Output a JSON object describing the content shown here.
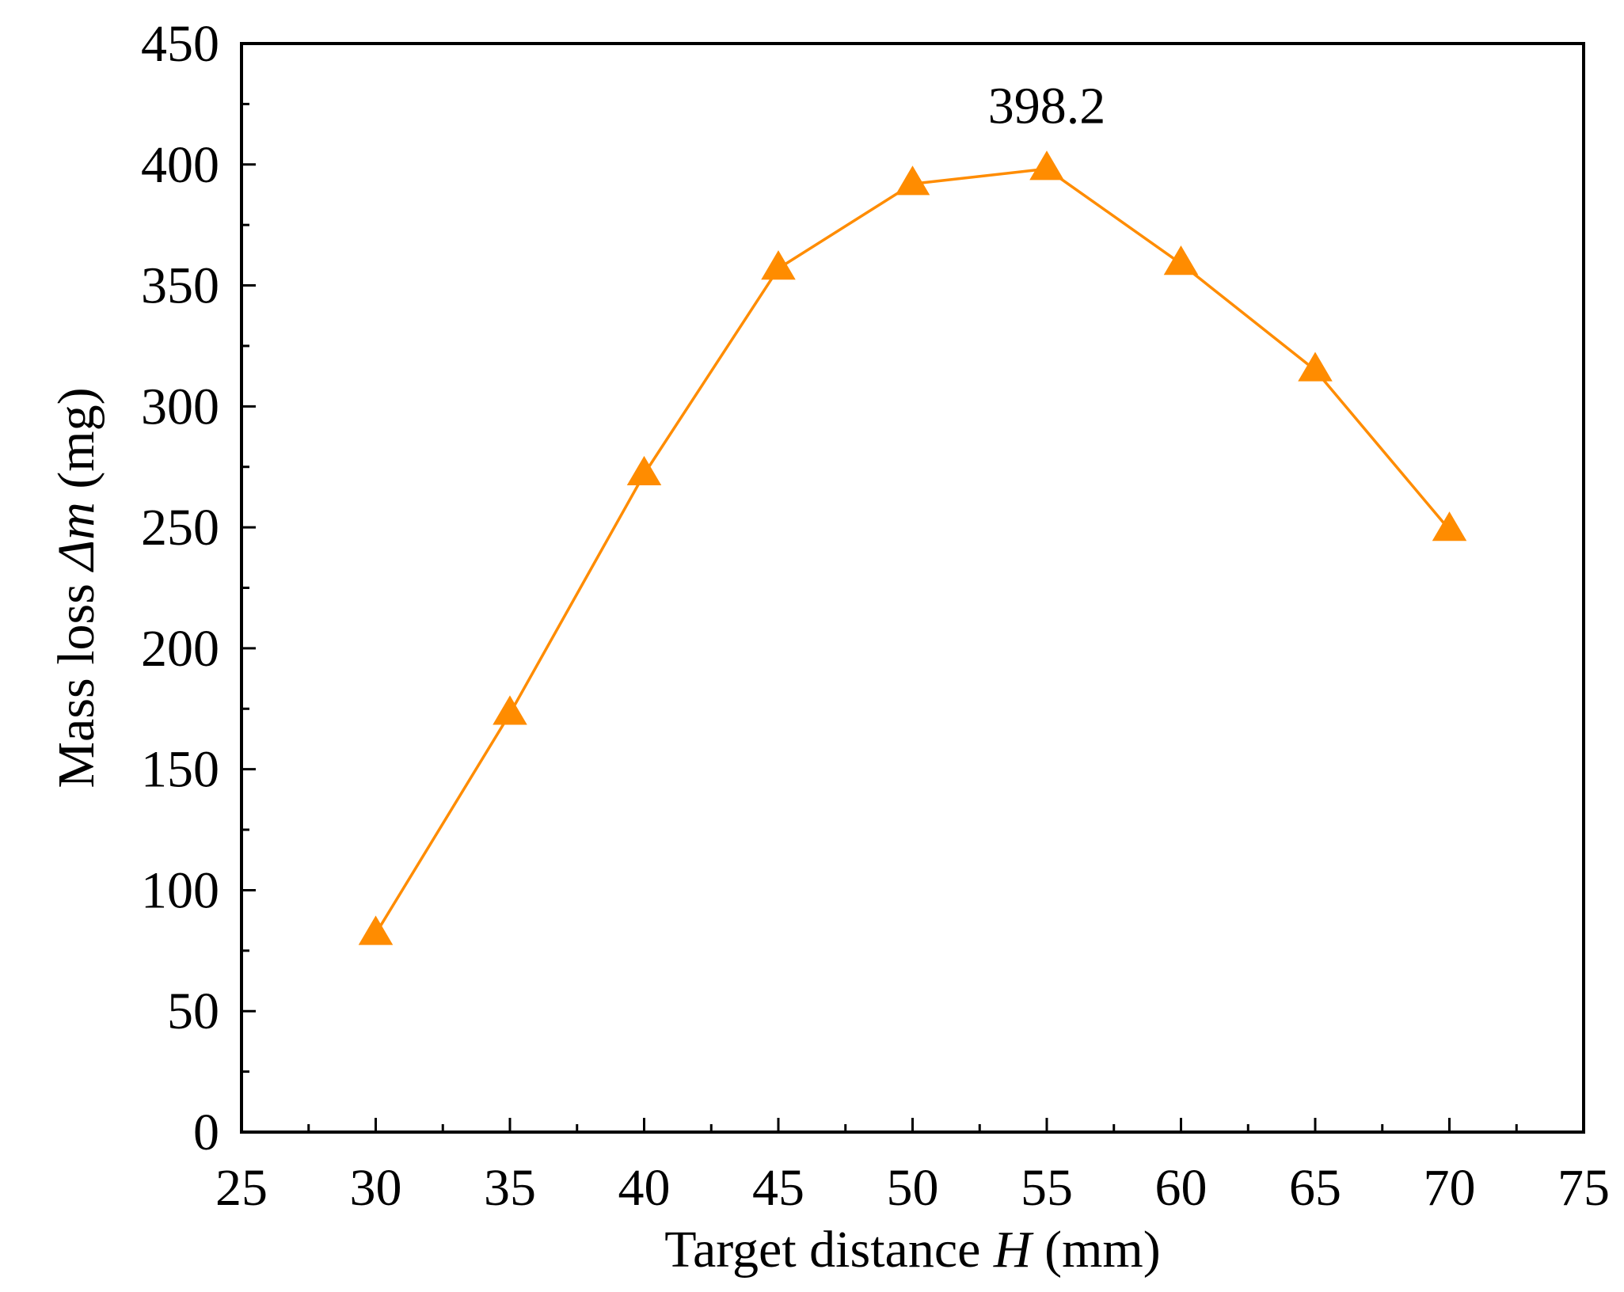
{
  "chart_data": {
    "type": "line",
    "title": "",
    "xlabel": {
      "prefix": "Target distance ",
      "variable": "H",
      "suffix": " (mm)"
    },
    "ylabel": {
      "prefix": "Mass loss ",
      "variable": "Δm",
      "suffix": " (mg)"
    },
    "xlim": [
      25,
      75
    ],
    "ylim": [
      0,
      450
    ],
    "xticks": [
      25,
      30,
      35,
      40,
      45,
      50,
      55,
      60,
      65,
      70,
      75
    ],
    "yticks": [
      0,
      50,
      100,
      150,
      200,
      250,
      300,
      350,
      400,
      450
    ],
    "grid": false,
    "legend": "none",
    "series": [
      {
        "marker": "triangle",
        "color": "#FF8C00",
        "x": [
          30,
          35,
          40,
          45,
          50,
          55,
          60,
          65,
          70
        ],
        "y": [
          82,
          173,
          272,
          357,
          392,
          398.2,
          359,
          315,
          249
        ]
      }
    ],
    "annotations": [
      {
        "text": "398.2",
        "x": 55,
        "y": 398.2
      }
    ]
  }
}
